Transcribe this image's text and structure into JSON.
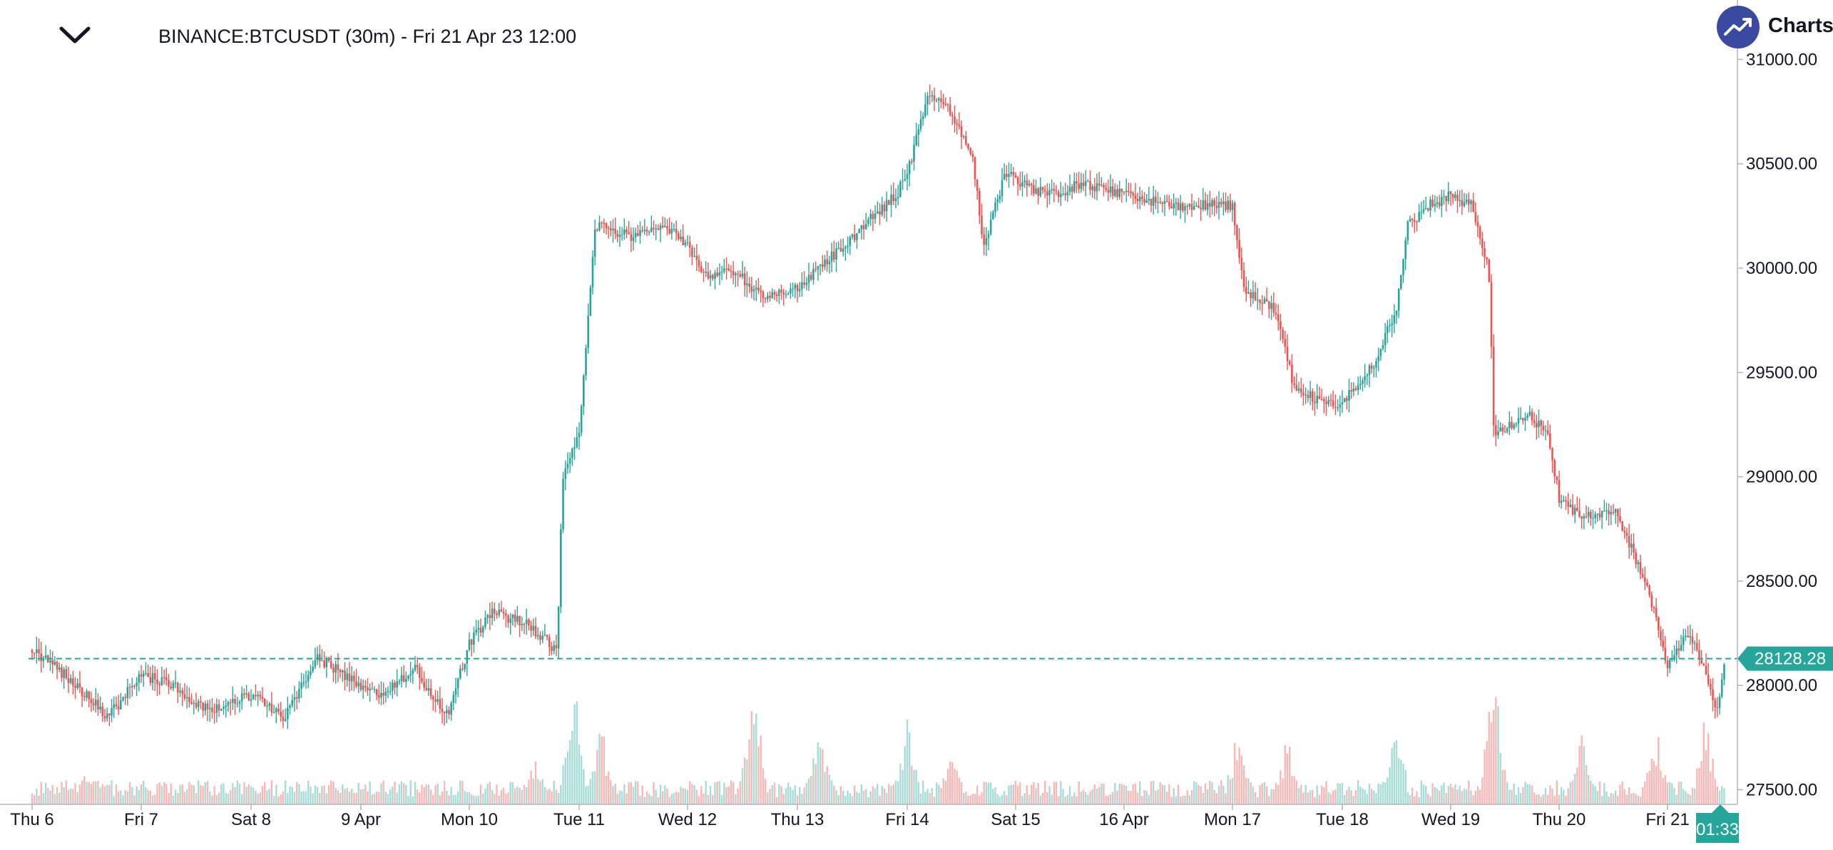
{
  "header": {
    "title": "BINANCE:BTCUSDT (30m) - Fri 21 Apr 23 12:00",
    "logo_text": "Charts p"
  },
  "icons": {
    "collapse": "chevron-down-icon",
    "logo": "trend-up-icon"
  },
  "colors": {
    "up": "#26a69a",
    "down": "#ef5350",
    "up_volume": "#a8dcd6",
    "down_volume": "#f7b9b7",
    "price_line": "#26a69a",
    "logo": "#3b4aa0"
  },
  "chart_data": {
    "type": "candlestick",
    "symbol": "BINANCE:BTCUSDT",
    "interval": "30m",
    "x_labels": [
      "Thu 6",
      "Fri 7",
      "Sat 8",
      "9 Apr",
      "Mon 10",
      "Tue 11",
      "Wed 12",
      "Thu 13",
      "Fri 14",
      "Sat 15",
      "16 Apr",
      "Mon 17",
      "Tue 18",
      "Wed 19",
      "Thu 20",
      "Fri 21"
    ],
    "y_ticks": [
      27500,
      28000,
      28500,
      29000,
      29500,
      30000,
      30500,
      31000
    ],
    "y_tick_labels": [
      "27500.00",
      "28000.00",
      "28500.00",
      "29000.00",
      "29500.00",
      "30000.00",
      "30500.00",
      "31000.00"
    ],
    "ylim": [
      27430,
      31080
    ],
    "close_path": [
      [
        0,
        28170
      ],
      [
        0.3,
        28050
      ],
      [
        0.7,
        27850
      ],
      [
        1.0,
        28050
      ],
      [
        1.3,
        28000
      ],
      [
        1.6,
        27880
      ],
      [
        2.0,
        27950
      ],
      [
        2.3,
        27850
      ],
      [
        2.6,
        28130
      ],
      [
        3.0,
        28000
      ],
      [
        3.2,
        27950
      ],
      [
        3.5,
        28080
      ],
      [
        3.8,
        27850
      ],
      [
        4.0,
        28200
      ],
      [
        4.2,
        28350
      ],
      [
        4.5,
        28300
      ],
      [
        4.8,
        28170
      ],
      [
        4.85,
        29000
      ],
      [
        5.0,
        29200
      ],
      [
        5.15,
        30200
      ],
      [
        5.5,
        30150
      ],
      [
        5.8,
        30200
      ],
      [
        6.0,
        30100
      ],
      [
        6.2,
        29950
      ],
      [
        6.4,
        30000
      ],
      [
        6.7,
        29850
      ],
      [
        7.0,
        29900
      ],
      [
        7.3,
        30050
      ],
      [
        7.6,
        30200
      ],
      [
        7.9,
        30350
      ],
      [
        8.0,
        30450
      ],
      [
        8.2,
        30850
      ],
      [
        8.4,
        30750
      ],
      [
        8.6,
        30550
      ],
      [
        8.7,
        30100
      ],
      [
        8.9,
        30450
      ],
      [
        9.3,
        30350
      ],
      [
        9.6,
        30400
      ],
      [
        10.0,
        30350
      ],
      [
        10.5,
        30300
      ],
      [
        11.0,
        30300
      ],
      [
        11.1,
        29900
      ],
      [
        11.4,
        29800
      ],
      [
        11.55,
        29450
      ],
      [
        11.8,
        29350
      ],
      [
        12.0,
        29350
      ],
      [
        12.3,
        29550
      ],
      [
        12.5,
        29800
      ],
      [
        12.6,
        30200
      ],
      [
        12.8,
        30300
      ],
      [
        13.0,
        30350
      ],
      [
        13.2,
        30300
      ],
      [
        13.35,
        30000
      ],
      [
        13.4,
        29200
      ],
      [
        13.7,
        29300
      ],
      [
        13.9,
        29200
      ],
      [
        14.0,
        28900
      ],
      [
        14.2,
        28800
      ],
      [
        14.5,
        28850
      ],
      [
        14.8,
        28500
      ],
      [
        15.0,
        28100
      ],
      [
        15.2,
        28250
      ],
      [
        15.35,
        28050
      ],
      [
        15.45,
        27850
      ],
      [
        15.53,
        28128.28
      ]
    ],
    "volume_peaks": [
      [
        0.5,
        0.25
      ],
      [
        4.6,
        0.4
      ],
      [
        4.95,
        0.95
      ],
      [
        5.2,
        0.6
      ],
      [
        6.6,
        0.9
      ],
      [
        7.2,
        0.55
      ],
      [
        8.0,
        0.6
      ],
      [
        8.4,
        0.45
      ],
      [
        11.05,
        0.55
      ],
      [
        11.5,
        0.5
      ],
      [
        12.5,
        0.55
      ],
      [
        13.4,
        1.0
      ],
      [
        14.2,
        0.6
      ],
      [
        14.9,
        0.55
      ],
      [
        15.35,
        0.65
      ]
    ],
    "last_price": 28128.28,
    "last_price_label": "28128.28",
    "countdown": "01:33",
    "grid": false,
    "legend": "none"
  }
}
